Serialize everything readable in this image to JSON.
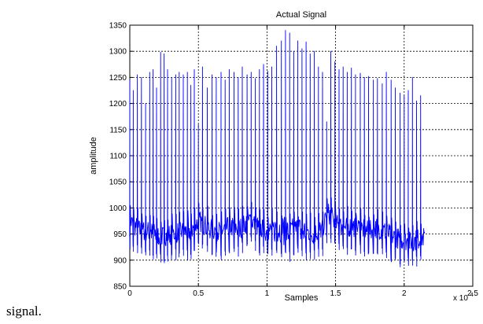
{
  "caption": "signal.",
  "chart_data": {
    "type": "line",
    "title": "Actual Signal",
    "xlabel": "Samples",
    "ylabel": "amplitude",
    "x_multiplier_label": "x 10",
    "x_multiplier_exp": "4",
    "xlim": [
      0,
      25000
    ],
    "ylim": [
      850,
      1350
    ],
    "xticks": [
      0,
      5000,
      10000,
      15000,
      20000,
      25000
    ],
    "xtick_labels": [
      "0",
      "0.5",
      "1",
      "1.5",
      "2",
      "2.5"
    ],
    "yticks": [
      850,
      900,
      950,
      1000,
      1050,
      1100,
      1150,
      1200,
      1250,
      1300,
      1350
    ],
    "ytick_labels": [
      "850",
      "900",
      "950",
      "1000",
      "1050",
      "1100",
      "1150",
      "1200",
      "1250",
      "1300",
      "1350"
    ],
    "grid": true,
    "line_color": "#0000ff",
    "series": [
      {
        "x": [
          0,
          250,
          550,
          850,
          1150,
          1450,
          1700,
          1950,
          2250,
          2500,
          2750,
          3050,
          3350,
          3600,
          3900,
          4200,
          4450,
          4700,
          5000,
          5300,
          5650,
          6000,
          6300,
          6650,
          6950,
          7250,
          7600,
          7900,
          8200,
          8550,
          8850,
          9150,
          9450,
          9750,
          10050,
          10350,
          10700,
          11050,
          11350,
          11650,
          11950,
          12250,
          12550,
          12850,
          13150,
          13450,
          13750,
          14050,
          14350,
          14650,
          14950,
          15250,
          15550,
          15850,
          16150,
          16450,
          16800,
          17100,
          17400,
          17750,
          18050,
          18400,
          18700,
          19050,
          19350,
          19700,
          20000,
          20300,
          20600,
          20900,
          21200,
          21500
        ],
        "peaks": [
          1245,
          1225,
          1255,
          1250,
          1200,
          1260,
          1265,
          1230,
          1298,
          1295,
          1265,
          1250,
          1255,
          1260,
          1255,
          1260,
          1235,
          1265,
          1160,
          1270,
          1230,
          1255,
          1250,
          1260,
          1245,
          1265,
          1260,
          1250,
          1270,
          1255,
          1260,
          1248,
          1265,
          1275,
          1262,
          1270,
          1310,
          1320,
          1340,
          1335,
          1300,
          1320,
          1305,
          1318,
          1295,
          1300,
          1270,
          1260,
          1165,
          1300,
          1280,
          1265,
          1270,
          1260,
          1268,
          1255,
          1258,
          1250,
          1252,
          1245,
          1248,
          1238,
          1260,
          1245,
          1230,
          1220,
          1215,
          1225,
          1250,
          1205,
          1215,
          1238
        ],
        "baseline_anchors_x": [
          0,
          700,
          1400,
          2300,
          3000,
          3800,
          4400,
          5100,
          5800,
          6600,
          7300,
          8000,
          8800,
          9400,
          10000,
          10500,
          11000,
          11600,
          12200,
          12800,
          13400,
          14000,
          14500,
          15000,
          15600,
          16200,
          16800,
          17400,
          18000,
          18600,
          19200,
          19800,
          20400,
          21000,
          21500
        ],
        "baseline_anchors_y": [
          975,
          958,
          955,
          945,
          950,
          955,
          955,
          975,
          960,
          955,
          965,
          960,
          978,
          962,
          955,
          960,
          960,
          950,
          958,
          955,
          950,
          960,
          990,
          970,
          962,
          965,
          962,
          955,
          962,
          955,
          945,
          940,
          935,
          940,
          945
        ]
      }
    ]
  }
}
